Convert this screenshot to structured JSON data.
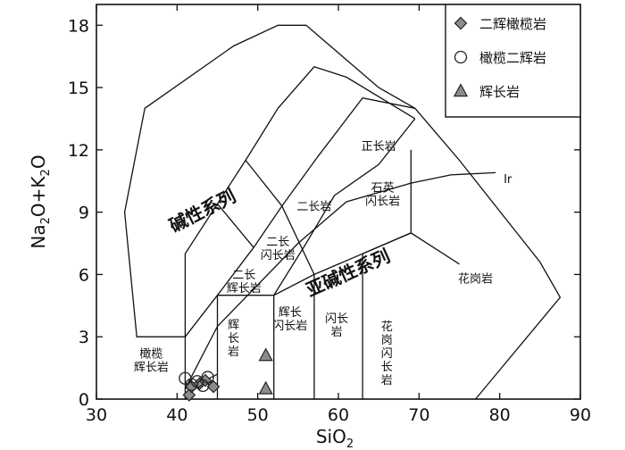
{
  "chart_data": {
    "type": "scatter",
    "title": "",
    "xlabel": "SiO",
    "xlabel_sub": "2",
    "ylabel": {
      "parts": [
        [
          "Na",
          false
        ],
        [
          "2",
          true
        ],
        [
          "O+K",
          false
        ],
        [
          "2",
          true
        ],
        [
          "O",
          false
        ]
      ]
    },
    "xlim": [
      30,
      90
    ],
    "ylim": [
      0,
      19
    ],
    "xticks": [
      30,
      40,
      50,
      60,
      70,
      80,
      90
    ],
    "yticks": [
      0,
      3,
      6,
      9,
      12,
      15,
      18
    ],
    "grid": false,
    "legend_position": "top-right",
    "series": [
      {
        "name": "二辉橄榄岩",
        "marker": "diamond",
        "color": "#8c8c8c",
        "points": [
          [
            41.5,
            0.2
          ],
          [
            41.8,
            0.6
          ],
          [
            42.8,
            0.75
          ],
          [
            43.5,
            0.9
          ],
          [
            44.5,
            0.6
          ]
        ]
      },
      {
        "name": "橄榄二辉岩",
        "marker": "circle",
        "color": "#ffffff",
        "points": [
          [
            41.0,
            1.0
          ],
          [
            41.8,
            0.7
          ],
          [
            42.5,
            0.85
          ],
          [
            43.2,
            0.65
          ],
          [
            43.8,
            1.05
          ]
        ]
      },
      {
        "name": "辉长岩",
        "marker": "triangle",
        "color": "#8c8c8c",
        "points": [
          [
            51.0,
            2.1
          ],
          [
            51.0,
            0.5
          ]
        ]
      }
    ],
    "series_labels": [
      {
        "text": "碱性系列",
        "x": 43.5,
        "y": 8.8,
        "angle": -27
      },
      {
        "text": "亚碱性系列",
        "x": 61.5,
        "y": 5.8,
        "angle": -24
      }
    ],
    "field_labels": [
      {
        "lines": [
          "正长岩"
        ],
        "x": 65,
        "y": 12
      },
      {
        "lines": [
          "石英",
          "闪长岩"
        ],
        "x": 65.5,
        "y": 10
      },
      {
        "lines": [
          "二长岩"
        ],
        "x": 57,
        "y": 9.1
      },
      {
        "lines": [
          "二长",
          "闪长岩"
        ],
        "x": 52.5,
        "y": 7.4
      },
      {
        "lines": [
          "二长",
          "辉长岩"
        ],
        "x": 48.3,
        "y": 5.8
      },
      {
        "lines": [
          "辉长",
          "闪长岩"
        ],
        "x": 54,
        "y": 4
      },
      {
        "lines": [
          "闪长",
          "岩"
        ],
        "x": 59.8,
        "y": 3.7
      },
      {
        "lines": [
          "花",
          "岗",
          "闪",
          "长",
          "岩"
        ],
        "x": 66,
        "y": 3.3
      },
      {
        "lines": [
          "花岗岩"
        ],
        "x": 77,
        "y": 5.6
      },
      {
        "lines": [
          "辉",
          "长",
          "岩"
        ],
        "x": 47,
        "y": 3.4
      },
      {
        "lines": [
          "橄榄",
          "辉长岩"
        ],
        "x": 36.8,
        "y": 2.0
      },
      {
        "lines": [
          "Ir"
        ],
        "x": 81,
        "y": 10.4
      }
    ],
    "boundaries": [
      [
        [
          41,
          3
        ],
        [
          35,
          3
        ],
        [
          33.5,
          9
        ],
        [
          36,
          14
        ],
        [
          47,
          17
        ],
        [
          52.5,
          18
        ],
        [
          56,
          18
        ],
        [
          65,
          15
        ],
        [
          69.5,
          14
        ],
        [
          75,
          11.5
        ],
        [
          85,
          6.6
        ],
        [
          87.5,
          4.9
        ],
        [
          77,
          0
        ]
      ],
      [
        [
          41,
          0
        ],
        [
          41,
          7
        ],
        [
          45,
          9.4
        ],
        [
          48.5,
          11.5
        ],
        [
          52.5,
          14
        ],
        [
          57,
          16
        ],
        [
          61,
          15.5
        ],
        [
          69.5,
          13.5
        ]
      ],
      [
        [
          45,
          0
        ],
        [
          45,
          5
        ],
        [
          49.5,
          7.3
        ],
        [
          53,
          9.3
        ],
        [
          57.5,
          11.7
        ],
        [
          63,
          14.5
        ],
        [
          69.5,
          14
        ]
      ],
      [
        [
          41,
          3
        ],
        [
          45,
          5
        ],
        [
          52,
          5
        ],
        [
          57,
          6
        ],
        [
          63,
          7
        ],
        [
          69,
          8
        ],
        [
          75,
          6.5
        ]
      ],
      [
        [
          52,
          0
        ],
        [
          52,
          5
        ],
        [
          56,
          7.5
        ],
        [
          59.5,
          9.8
        ],
        [
          65,
          11.3
        ],
        [
          69.5,
          13.5
        ]
      ],
      [
        [
          57,
          0
        ],
        [
          57,
          6
        ],
        [
          53,
          9.3
        ]
      ],
      [
        [
          63,
          0
        ],
        [
          63,
          7
        ],
        [
          69,
          8
        ],
        [
          69,
          12
        ]
      ],
      [
        [
          48.5,
          11.5
        ],
        [
          53,
          9.3
        ]
      ],
      [
        [
          49.5,
          7.3
        ],
        [
          45,
          9.4
        ]
      ],
      [
        [
          41,
          0.5
        ],
        [
          45,
          3.5
        ],
        [
          55,
          7.5
        ],
        [
          61,
          9.5
        ],
        [
          69,
          10.4
        ],
        [
          74,
          10.8
        ],
        [
          79.5,
          10.9
        ]
      ],
      [
        [
          41,
          0.5
        ],
        [
          44,
          1.0
        ],
        [
          45,
          1.2
        ]
      ]
    ]
  }
}
